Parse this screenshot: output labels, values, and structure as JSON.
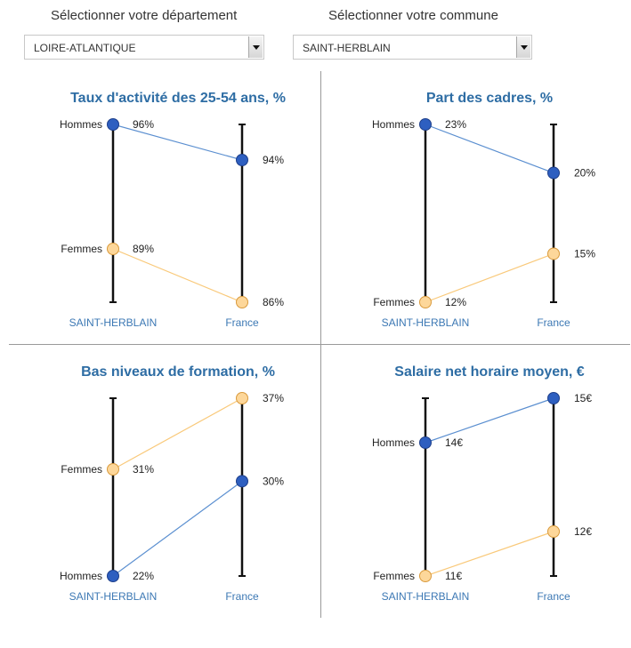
{
  "filters": {
    "department_label": "Sélectionner votre département",
    "department_value": "LOIRE-ATLANTIQUE",
    "commune_label": "Sélectionner votre commune",
    "commune_value": "SAINT-HERBLAIN"
  },
  "colors": {
    "hommes": "#2e5fc0",
    "femmes": "#fdd79a",
    "hommes_line": "#5b8fd0",
    "femmes_line": "#f9c97a",
    "title": "#2e6da4"
  },
  "chart_data": [
    {
      "type": "slope",
      "title": "Taux d'activité des 25-54 ans, %",
      "axes": [
        "SAINT-HERBLAIN",
        "France"
      ],
      "ylim": [
        86,
        96
      ],
      "series": [
        {
          "name": "Hommes",
          "values": [
            96,
            94
          ],
          "labels": [
            "96%",
            "94%"
          ]
        },
        {
          "name": "Femmes",
          "values": [
            89,
            86
          ],
          "labels": [
            "89%",
            "86%"
          ]
        }
      ]
    },
    {
      "type": "slope",
      "title": "Part des cadres, %",
      "axes": [
        "SAINT-HERBLAIN",
        "France"
      ],
      "ylim": [
        12,
        23
      ],
      "series": [
        {
          "name": "Hommes",
          "values": [
            23,
            20
          ],
          "labels": [
            "23%",
            "20%"
          ]
        },
        {
          "name": "Femmes",
          "values": [
            12,
            15
          ],
          "labels": [
            "12%",
            "15%"
          ]
        }
      ]
    },
    {
      "type": "slope",
      "title": "Bas niveaux de formation, %",
      "axes": [
        "SAINT-HERBLAIN",
        "France"
      ],
      "ylim": [
        22,
        37
      ],
      "series": [
        {
          "name": "Femmes",
          "values": [
            31,
            37
          ],
          "labels": [
            "31%",
            "37%"
          ]
        },
        {
          "name": "Hommes",
          "values": [
            22,
            30
          ],
          "labels": [
            "22%",
            "30%"
          ]
        }
      ]
    },
    {
      "type": "slope",
      "title": "Salaire net horaire moyen, €",
      "axes": [
        "SAINT-HERBLAIN",
        "France"
      ],
      "ylim": [
        11,
        15
      ],
      "series": [
        {
          "name": "Hommes",
          "values": [
            14,
            15
          ],
          "labels": [
            "14€",
            "15€"
          ]
        },
        {
          "name": "Femmes",
          "values": [
            11,
            12
          ],
          "labels": [
            "11€",
            "12€"
          ]
        }
      ]
    }
  ]
}
